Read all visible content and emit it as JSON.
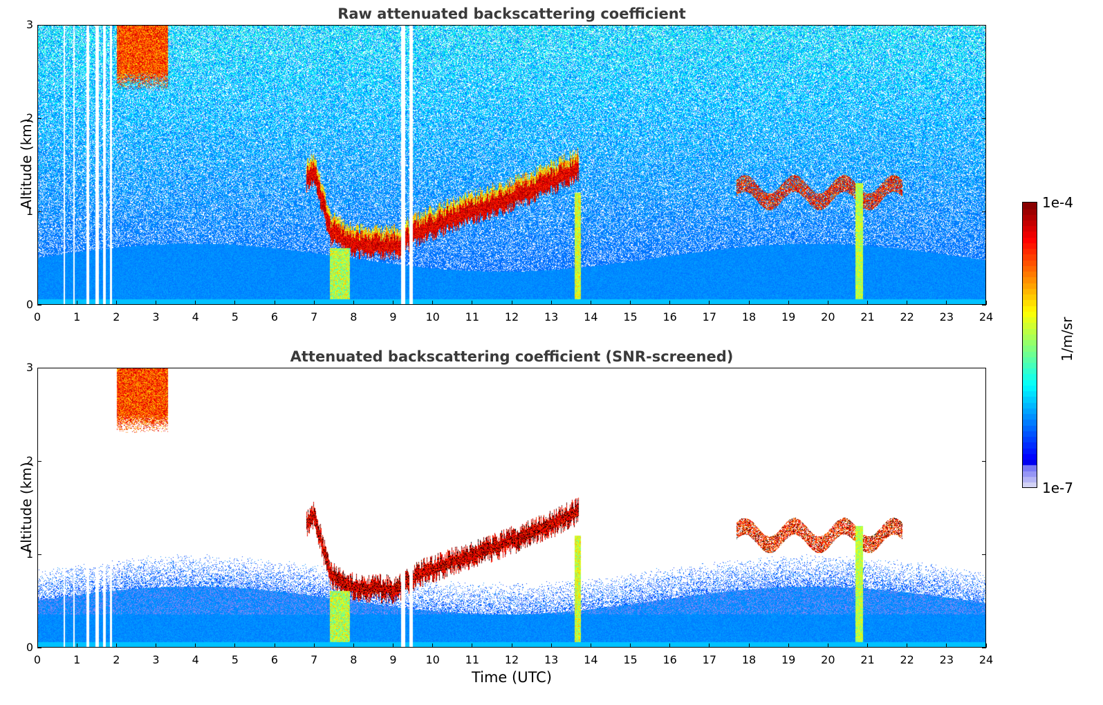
{
  "chart_data": [
    {
      "type": "heatmap",
      "title": "Raw attenuated backscattering coefficient",
      "xlabel": "",
      "ylabel": "Altitude (km)",
      "xlim": [
        0,
        24
      ],
      "ylim": [
        0,
        3
      ],
      "x_ticks": [
        "0",
        "1",
        "2",
        "3",
        "4",
        "5",
        "6",
        "7",
        "8",
        "9",
        "10",
        "11",
        "12",
        "13",
        "14",
        "15",
        "16",
        "17",
        "18",
        "19",
        "20",
        "21",
        "22",
        "23",
        "24"
      ],
      "y_ticks": [
        "0",
        "1",
        "2",
        "3"
      ],
      "grid": false,
      "data_gaps_utc": [
        [
          0.65,
          0.68
        ],
        [
          0.9,
          0.93
        ],
        [
          1.22,
          1.3
        ],
        [
          1.45,
          1.55
        ],
        [
          1.65,
          1.72
        ],
        [
          1.83,
          1.88
        ],
        [
          9.2,
          9.3
        ],
        [
          9.4,
          9.5
        ]
      ],
      "layers": [
        {
          "name": "cirrus",
          "x_range": [
            2.0,
            3.3
          ],
          "y_range": [
            2.3,
            3.0
          ]
        },
        {
          "name": "cloud_base",
          "points": [
            [
              6.8,
              1.3
            ],
            [
              7.0,
              1.4
            ],
            [
              7.4,
              0.75
            ],
            [
              8.0,
              0.62
            ],
            [
              9.1,
              0.6
            ],
            [
              9.6,
              0.75
            ],
            [
              10.5,
              0.9
            ],
            [
              11.5,
              1.05
            ],
            [
              12.5,
              1.2
            ],
            [
              13.5,
              1.4
            ],
            [
              13.7,
              1.45
            ]
          ]
        },
        {
          "name": "cloud_late",
          "x_range": [
            17.7,
            21.9
          ],
          "y": 1.2
        }
      ]
    },
    {
      "type": "heatmap",
      "title": "Attenuated backscattering coefficient (SNR-screened)",
      "xlabel": "Time (UTC)",
      "ylabel": "Altitude (km)",
      "xlim": [
        0,
        24
      ],
      "ylim": [
        0,
        3
      ],
      "x_ticks": [
        "0",
        "1",
        "2",
        "3",
        "4",
        "5",
        "6",
        "7",
        "8",
        "9",
        "10",
        "11",
        "12",
        "13",
        "14",
        "15",
        "16",
        "17",
        "18",
        "19",
        "20",
        "21",
        "22",
        "23",
        "24"
      ],
      "y_ticks": [
        "0",
        "1",
        "2",
        "3"
      ],
      "grid": false
    }
  ],
  "colorbar": {
    "label": "1/m/sr",
    "max_label": "1e-4",
    "min_label": "1e-7",
    "scale": "log",
    "colormap": "jet"
  }
}
